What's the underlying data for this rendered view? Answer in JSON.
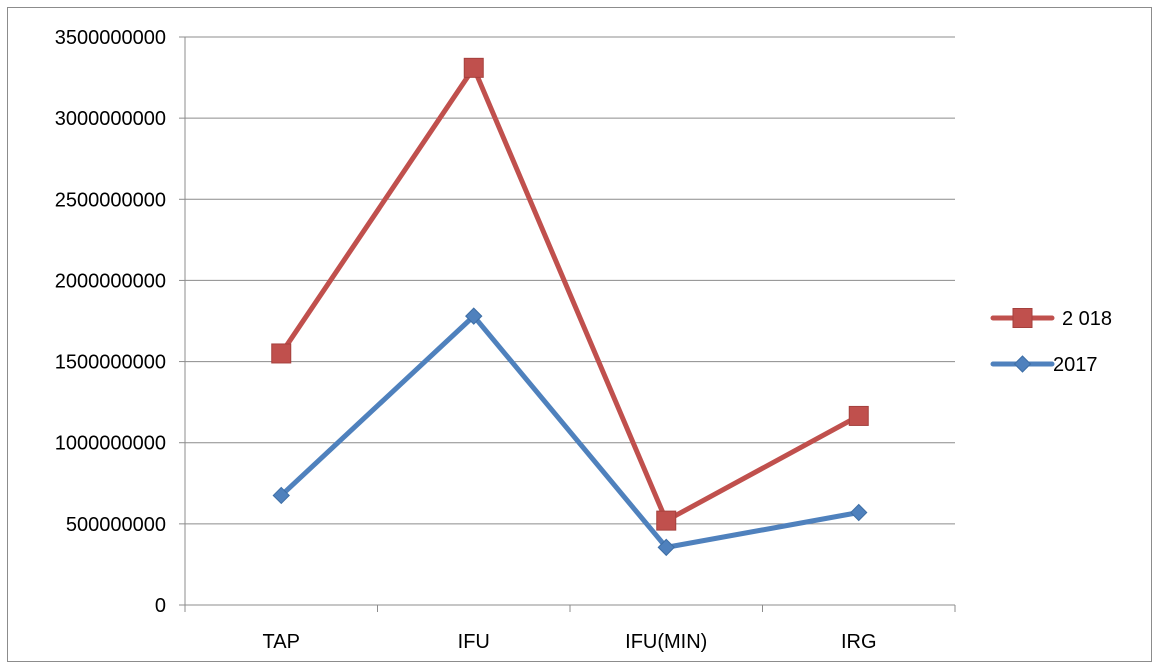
{
  "chart_data": {
    "type": "line",
    "categories": [
      "TAP",
      "IFU",
      "IFU(MIN)",
      "IRG"
    ],
    "series": [
      {
        "name": "2 018",
        "color": "#c0504d",
        "marker": "square",
        "values": [
          1550000000,
          3310000000,
          520000000,
          1165000000
        ]
      },
      {
        "name": "2017",
        "color": "#4f81bd",
        "marker": "diamond",
        "values": [
          675000000,
          1780000000,
          355000000,
          570000000
        ]
      }
    ],
    "title": "",
    "xlabel": "",
    "ylabel": "",
    "ylim": [
      0,
      3500000000
    ],
    "yticks": [
      "0",
      "500000000",
      "1000000000",
      "1500000000",
      "2000000000",
      "2500000000",
      "3000000000",
      "3500000000"
    ],
    "grid": true,
    "legend_position": "right"
  }
}
